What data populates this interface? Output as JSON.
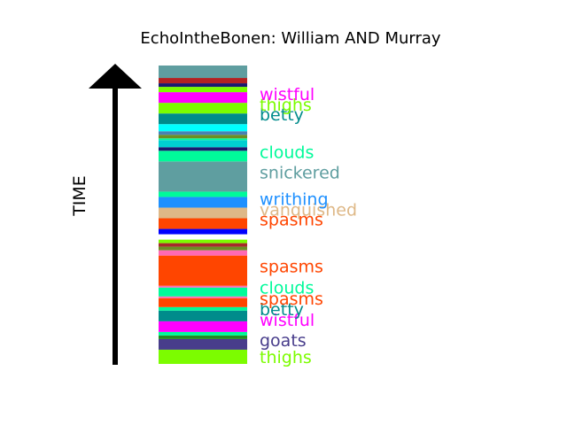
{
  "chart_data": {
    "type": "bar",
    "title": "EchoIntheBonen: William AND Murray",
    "ylabel": "TIME",
    "xlabel": "",
    "ylim": [
      0,
      336
    ],
    "segments": [
      {
        "start": 0,
        "end": 16,
        "color": "#7cfc00"
      },
      {
        "start": 16,
        "end": 28,
        "color": "#483d8b"
      },
      {
        "start": 28,
        "end": 32,
        "color": "#228b22"
      },
      {
        "start": 32,
        "end": 36,
        "color": "#00fa9a"
      },
      {
        "start": 36,
        "end": 48,
        "color": "#ff00ff"
      },
      {
        "start": 48,
        "end": 60,
        "color": "#008b8b"
      },
      {
        "start": 60,
        "end": 64,
        "color": "#00fa9a"
      },
      {
        "start": 64,
        "end": 74,
        "color": "#ff4500"
      },
      {
        "start": 74,
        "end": 76,
        "color": "#ff69b4"
      },
      {
        "start": 76,
        "end": 86,
        "color": "#00fa9a"
      },
      {
        "start": 86,
        "end": 88,
        "color": "#ff69b4"
      },
      {
        "start": 88,
        "end": 122,
        "color": "#ff4500"
      },
      {
        "start": 122,
        "end": 128,
        "color": "#ff69b4"
      },
      {
        "start": 128,
        "end": 132,
        "color": "#6b8e23"
      },
      {
        "start": 132,
        "end": 136,
        "color": "#a52a2a"
      },
      {
        "start": 136,
        "end": 140,
        "color": "#7cfc00"
      },
      {
        "start": 140,
        "end": 146,
        "color": "#ffffff"
      },
      {
        "start": 146,
        "end": 152,
        "color": "#0000ff"
      },
      {
        "start": 152,
        "end": 164,
        "color": "#ff4500"
      },
      {
        "start": 164,
        "end": 176,
        "color": "#deb887"
      },
      {
        "start": 176,
        "end": 188,
        "color": "#1e90ff"
      },
      {
        "start": 188,
        "end": 194,
        "color": "#00fa9a"
      },
      {
        "start": 194,
        "end": 228,
        "color": "#5f9ea0"
      },
      {
        "start": 228,
        "end": 240,
        "color": "#00fa9a"
      },
      {
        "start": 240,
        "end": 244,
        "color": "#191970"
      },
      {
        "start": 244,
        "end": 252,
        "color": "#00ced1"
      },
      {
        "start": 252,
        "end": 254,
        "color": "#00fa9a"
      },
      {
        "start": 254,
        "end": 258,
        "color": "#6b8e23"
      },
      {
        "start": 258,
        "end": 262,
        "color": "#4682b4"
      },
      {
        "start": 262,
        "end": 270,
        "color": "#00ffff"
      },
      {
        "start": 270,
        "end": 282,
        "color": "#008b8b"
      },
      {
        "start": 282,
        "end": 294,
        "color": "#7cfc00"
      },
      {
        "start": 294,
        "end": 306,
        "color": "#ff00ff"
      },
      {
        "start": 306,
        "end": 312,
        "color": "#7cfc00"
      },
      {
        "start": 312,
        "end": 316,
        "color": "#191970"
      },
      {
        "start": 316,
        "end": 322,
        "color": "#b22222"
      },
      {
        "start": 322,
        "end": 336,
        "color": "#5f9ea0"
      }
    ],
    "labels": [
      {
        "text": "thighs",
        "value": 8,
        "color": "#7cfc00"
      },
      {
        "text": "goats",
        "value": 27,
        "color": "#483d8b"
      },
      {
        "text": "wistful",
        "value": 50,
        "color": "#ff00ff"
      },
      {
        "text": "betty",
        "value": 62,
        "color": "#008b8b"
      },
      {
        "text": "spasms",
        "value": 74,
        "color": "#ff4500"
      },
      {
        "text": "clouds",
        "value": 86,
        "color": "#00fa9a"
      },
      {
        "text": "spasms",
        "value": 110,
        "color": "#ff4500"
      },
      {
        "text": "spasms",
        "value": 163,
        "color": "#ff4500"
      },
      {
        "text": "vanquished",
        "value": 174,
        "color": "#deb887"
      },
      {
        "text": "writhing",
        "value": 186,
        "color": "#1e90ff"
      },
      {
        "text": "snickered",
        "value": 216,
        "color": "#5f9ea0"
      },
      {
        "text": "clouds",
        "value": 239,
        "color": "#00fa9a"
      },
      {
        "text": "betty",
        "value": 281,
        "color": "#008b8b"
      },
      {
        "text": "thighs",
        "value": 292,
        "color": "#7cfc00"
      },
      {
        "text": "wistful",
        "value": 304,
        "color": "#ff00ff"
      }
    ]
  }
}
